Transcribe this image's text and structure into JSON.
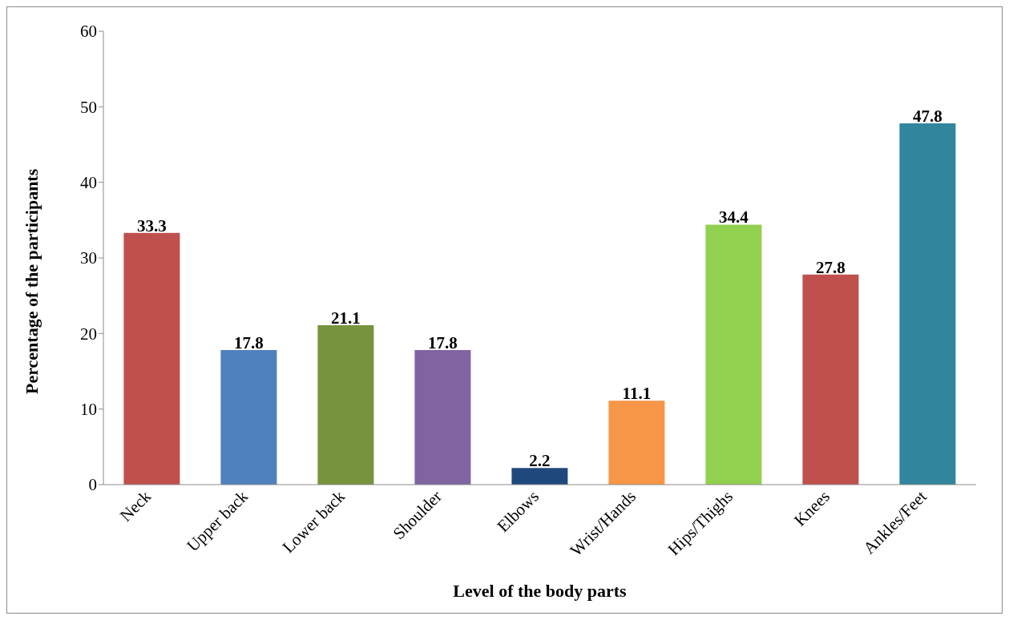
{
  "chart_data": {
    "type": "bar",
    "xlabel": "Level of the body parts",
    "ylabel": "Percentage of the participants",
    "categories": [
      "Neck",
      "Upper back",
      "Lower back",
      "Shoulder",
      "Elbows",
      "Wrist/Hands",
      "Hips/Thighs",
      "Knees",
      "Ankles/Feet"
    ],
    "values": [
      33.3,
      17.8,
      21.1,
      17.8,
      2.2,
      11.1,
      34.4,
      27.8,
      47.8
    ],
    "colors": [
      "#c0504d",
      "#4f81bd",
      "#77933c",
      "#8064a2",
      "#1f497d",
      "#f79646",
      "#92d050",
      "#c0504d",
      "#31859c"
    ],
    "ylim": [
      0,
      60
    ],
    "yticks": [
      0,
      10,
      20,
      30,
      40,
      50,
      60
    ],
    "data_labels": true
  }
}
